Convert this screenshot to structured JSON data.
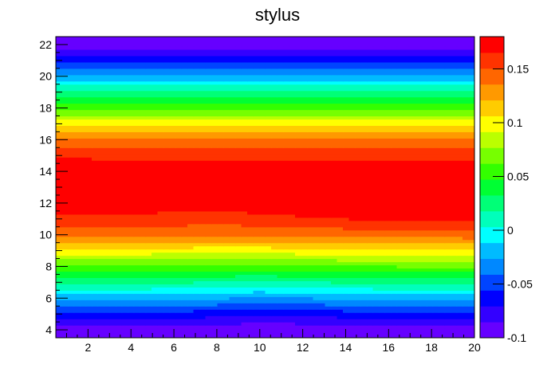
{
  "chart_data": {
    "type": "heatmap",
    "title": "stylus",
    "xlabel": "",
    "ylabel": "",
    "xlim": [
      0.5,
      20
    ],
    "ylim": [
      3.5,
      22.5
    ],
    "x_ticks": [
      2,
      4,
      6,
      8,
      10,
      12,
      14,
      16,
      18,
      20
    ],
    "y_ticks": [
      4,
      6,
      8,
      10,
      12,
      14,
      16,
      18,
      20,
      22
    ],
    "z_range": [
      -0.1,
      0.18
    ],
    "colorbar_ticks": [
      -0.1,
      -0.05,
      0,
      0.05,
      0.1,
      0.15
    ],
    "colorbar_tick_labels": [
      "-0.1",
      "-0.05",
      "0",
      "0.05",
      "0.1",
      "0.15"
    ],
    "color_levels": [
      "#6600ff",
      "#3300ff",
      "#0000ff",
      "#0044ff",
      "#0088ff",
      "#00bbff",
      "#00ffff",
      "#00ffbb",
      "#00ff77",
      "#00ff33",
      "#33ff00",
      "#77ff00",
      "#bbff00",
      "#ffff00",
      "#ffcc00",
      "#ff9900",
      "#ff6600",
      "#ff3300",
      "#ff0000"
    ],
    "x_columns": [
      1,
      4,
      8,
      10,
      12,
      16,
      20
    ],
    "y_rows": [
      4,
      5,
      6,
      7,
      8,
      9,
      10,
      11,
      12,
      13,
      14,
      15,
      16,
      17,
      18,
      19,
      20,
      21,
      22
    ],
    "z": [
      [
        -0.095,
        -0.095,
        -0.096,
        -0.098,
        -0.097,
        -0.095,
        -0.095
      ],
      [
        -0.06,
        -0.06,
        -0.065,
        -0.07,
        -0.067,
        -0.06,
        -0.06
      ],
      [
        -0.02,
        -0.02,
        -0.025,
        -0.03,
        -0.027,
        -0.02,
        -0.02
      ],
      [
        0.02,
        0.02,
        0.017,
        0.015,
        0.017,
        0.02,
        0.02
      ],
      [
        0.06,
        0.06,
        0.058,
        0.057,
        0.06,
        0.062,
        0.063
      ],
      [
        0.1,
        0.1,
        0.098,
        0.098,
        0.1,
        0.102,
        0.104
      ],
      [
        0.14,
        0.138,
        0.137,
        0.137,
        0.14,
        0.142,
        0.144
      ],
      [
        0.162,
        0.16,
        0.159,
        0.16,
        0.163,
        0.167,
        0.17
      ],
      [
        0.175,
        0.174,
        0.173,
        0.174,
        0.176,
        0.178,
        0.179
      ],
      [
        0.178,
        0.178,
        0.178,
        0.178,
        0.178,
        0.178,
        0.178
      ],
      [
        0.174,
        0.174,
        0.174,
        0.174,
        0.174,
        0.174,
        0.176
      ],
      [
        0.165,
        0.16,
        0.16,
        0.16,
        0.16,
        0.16,
        0.16
      ],
      [
        0.14,
        0.14,
        0.14,
        0.14,
        0.14,
        0.14,
        0.14
      ],
      [
        0.1,
        0.1,
        0.1,
        0.1,
        0.1,
        0.1,
        0.1
      ],
      [
        0.06,
        0.06,
        0.06,
        0.06,
        0.06,
        0.06,
        0.06
      ],
      [
        0.02,
        0.02,
        0.02,
        0.02,
        0.02,
        0.02,
        0.02
      ],
      [
        -0.02,
        -0.02,
        -0.02,
        -0.02,
        -0.02,
        -0.02,
        -0.02
      ],
      [
        -0.06,
        -0.06,
        -0.06,
        -0.06,
        -0.06,
        -0.06,
        -0.06
      ],
      [
        -0.095,
        -0.095,
        -0.095,
        -0.095,
        -0.095,
        -0.095,
        -0.095
      ]
    ],
    "grid": false,
    "colorbar_placement": "right"
  }
}
